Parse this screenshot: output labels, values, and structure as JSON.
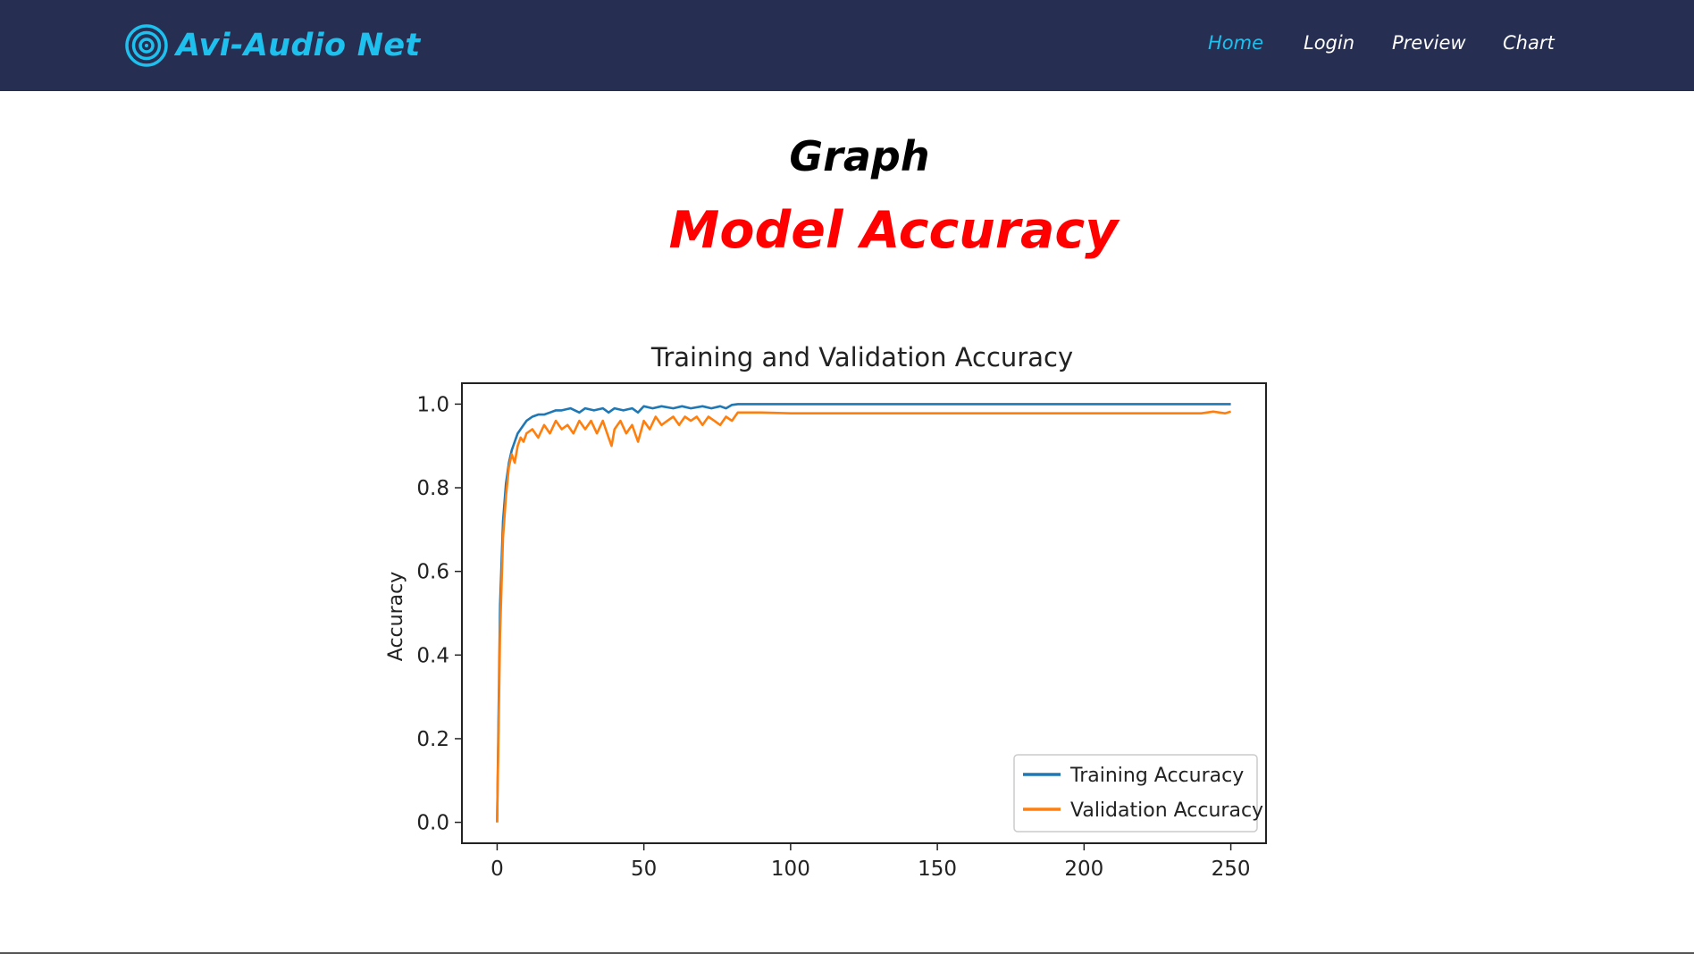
{
  "brand": {
    "name": "Avi-Audio Net",
    "icon": "concentric-circles-icon",
    "color": "#1ec0ee"
  },
  "nav": {
    "items": [
      {
        "label": "Home",
        "active": true
      },
      {
        "label": "Login",
        "active": false
      },
      {
        "label": "Preview",
        "active": false
      },
      {
        "label": "Chart",
        "active": false
      }
    ],
    "background": "#262f52",
    "active_color": "#1ec0ee"
  },
  "page": {
    "title": "Graph",
    "subtitle": "Model Accuracy",
    "subtitle_color": "#ff0000"
  },
  "chart_data": {
    "type": "line",
    "title": "Training and Validation Accuracy",
    "xlabel": "",
    "ylabel": "Accuracy",
    "xlim": [
      -12,
      262
    ],
    "ylim": [
      -0.05,
      1.05
    ],
    "xticks": [
      0,
      50,
      100,
      150,
      200,
      250
    ],
    "yticks": [
      0.0,
      0.2,
      0.4,
      0.6,
      0.8,
      1.0
    ],
    "ytick_labels": [
      "0.0",
      "0.2",
      "0.4",
      "0.6",
      "0.8",
      "1.0"
    ],
    "grid": false,
    "legend_position": "lower right",
    "series": [
      {
        "name": "Training Accuracy",
        "color": "#1f77b4",
        "x": [
          0,
          1,
          2,
          3,
          4,
          5,
          6,
          7,
          8,
          9,
          10,
          12,
          14,
          16,
          18,
          20,
          22,
          25,
          28,
          30,
          33,
          36,
          38,
          40,
          43,
          46,
          48,
          50,
          53,
          56,
          60,
          63,
          66,
          70,
          73,
          76,
          78,
          80,
          82,
          85,
          90,
          100,
          120,
          150,
          180,
          200,
          220,
          240,
          250
        ],
        "values": [
          0.0,
          0.52,
          0.72,
          0.81,
          0.86,
          0.89,
          0.91,
          0.93,
          0.94,
          0.95,
          0.96,
          0.97,
          0.975,
          0.975,
          0.98,
          0.985,
          0.985,
          0.99,
          0.98,
          0.99,
          0.985,
          0.99,
          0.98,
          0.99,
          0.985,
          0.99,
          0.98,
          0.995,
          0.99,
          0.995,
          0.99,
          0.995,
          0.99,
          0.995,
          0.99,
          0.995,
          0.99,
          0.998,
          1.0,
          1.0,
          1.0,
          1.0,
          1.0,
          1.0,
          1.0,
          1.0,
          1.0,
          1.0,
          1.0
        ]
      },
      {
        "name": "Validation Accuracy",
        "color": "#ff7f0e",
        "x": [
          0,
          1,
          2,
          3,
          4,
          5,
          6,
          7,
          8,
          9,
          10,
          12,
          14,
          16,
          18,
          20,
          22,
          24,
          26,
          28,
          30,
          32,
          34,
          36,
          38,
          39,
          40,
          42,
          44,
          46,
          48,
          50,
          52,
          54,
          56,
          58,
          60,
          62,
          64,
          66,
          68,
          70,
          72,
          74,
          76,
          78,
          80,
          82,
          85,
          90,
          100,
          120,
          150,
          180,
          200,
          220,
          240,
          244,
          248,
          250
        ],
        "values": [
          0.0,
          0.45,
          0.68,
          0.78,
          0.85,
          0.88,
          0.86,
          0.9,
          0.92,
          0.91,
          0.93,
          0.94,
          0.92,
          0.95,
          0.93,
          0.96,
          0.94,
          0.95,
          0.93,
          0.96,
          0.94,
          0.96,
          0.93,
          0.96,
          0.92,
          0.9,
          0.94,
          0.96,
          0.93,
          0.95,
          0.91,
          0.96,
          0.94,
          0.97,
          0.95,
          0.96,
          0.97,
          0.95,
          0.97,
          0.96,
          0.97,
          0.95,
          0.97,
          0.96,
          0.95,
          0.97,
          0.96,
          0.98,
          0.98,
          0.98,
          0.978,
          0.978,
          0.978,
          0.978,
          0.978,
          0.978,
          0.978,
          0.982,
          0.978,
          0.982
        ]
      }
    ]
  }
}
